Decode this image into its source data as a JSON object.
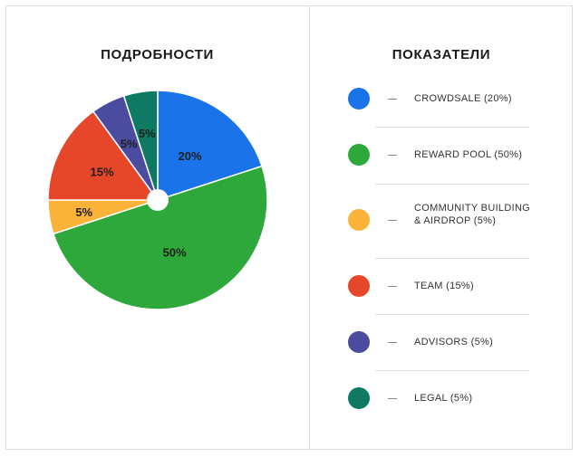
{
  "chart_data": {
    "type": "pie",
    "title": "ПОДРОБНОСТИ",
    "slices": [
      {
        "label": "CROWDSALE",
        "value": 20,
        "data_label": "20%",
        "color": "#1a73e8"
      },
      {
        "label": "REWARD POOL",
        "value": 50,
        "data_label": "50%",
        "color": "#2ea83a"
      },
      {
        "label": "COMMUNITY BUILDING & AIRDROP",
        "value": 5,
        "data_label": "5%",
        "color": "#fbb33a"
      },
      {
        "label": "TEAM",
        "value": 15,
        "data_label": "15%",
        "color": "#e6462a"
      },
      {
        "label": "ADVISORS",
        "value": 5,
        "data_label": "5%",
        "color": "#4b4ba0"
      },
      {
        "label": "LEGAL",
        "value": 5,
        "data_label": "5%",
        "color": "#0e7a63"
      }
    ]
  },
  "legend": {
    "title": "ПОКАЗАТЕЛИ",
    "items": [
      {
        "text": "CROWDSALE (20%)",
        "color": "#1a73e8"
      },
      {
        "text": "REWARD POOL (50%)",
        "color": "#2ea83a"
      },
      {
        "text": "COMMUNITY BUILDING & AIRDROP (5%)",
        "color": "#fbb33a"
      },
      {
        "text": "TEAM (15%)",
        "color": "#e6462a"
      },
      {
        "text": "ADVISORS (5%)",
        "color": "#4b4ba0"
      },
      {
        "text": "LEGAL (5%)",
        "color": "#0e7a63"
      }
    ]
  }
}
